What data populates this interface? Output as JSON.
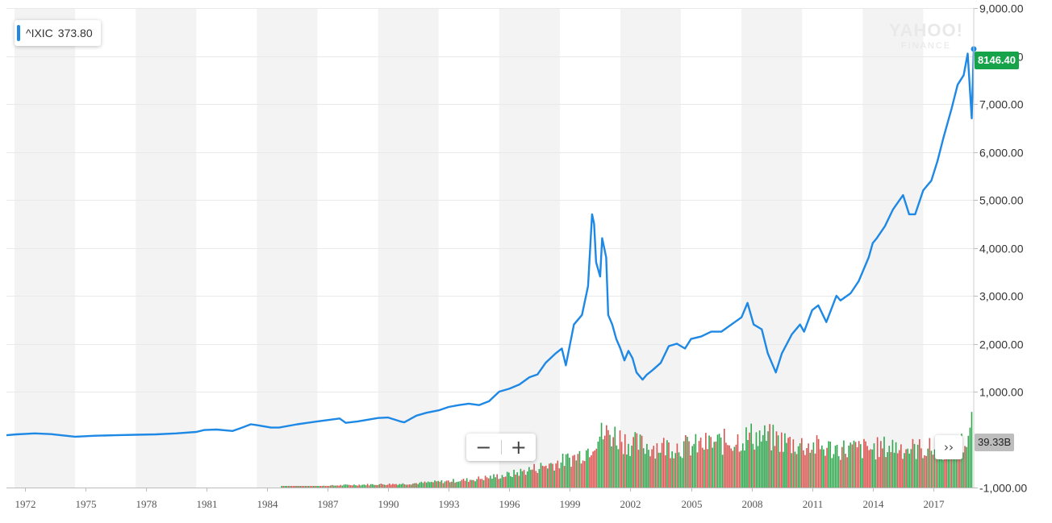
{
  "legend": {
    "symbol": "^IXIC",
    "value": "373.80"
  },
  "watermark": {
    "brand": "YAHOO!",
    "sub": "FINANCE"
  },
  "price_tag": "8146.40",
  "volume_tag": "39.33B",
  "controls": {
    "zoom_out": "−",
    "zoom_in": "+",
    "more": "››"
  },
  "colors": {
    "line": "#1e88e5",
    "volume_up": "#2fa84f",
    "volume_down": "#d9534f",
    "price_tag": "#16a34a"
  },
  "chart_data": {
    "type": "line",
    "ylim": [
      -1000,
      9000
    ],
    "yticks": [
      1000,
      2000,
      3000,
      4000,
      5000,
      6000,
      7000,
      8000,
      9000,
      -1000
    ],
    "ytick_labels": [
      "1,000.00",
      "2,000.00",
      "3,000.00",
      "4,000.00",
      "5,000.00",
      "6,000.00",
      "7,000.00",
      "8,000.00",
      "9,000.00",
      "-1,000.00"
    ],
    "xlim": [
      1971.1,
      2019.0
    ],
    "xticks": [
      1972,
      1975,
      1978,
      1981,
      1984,
      1987,
      1990,
      1993,
      1996,
      1999,
      2002,
      2005,
      2008,
      2011,
      2014,
      2017
    ],
    "xtick_labels": [
      "1972",
      "1975",
      "1978",
      "1981",
      "1984",
      "1987",
      "1990",
      "1993",
      "1996",
      "1999",
      "2002",
      "2005",
      "2008",
      "2011",
      "2014",
      "2017"
    ],
    "series": [
      {
        "x": [
          1971.1,
          1971.6,
          1972.5,
          1973.3,
          1973.8,
          1974.5,
          1974.8,
          1975.5,
          1976.5,
          1977.5,
          1978.5,
          1979.5,
          1980.5,
          1980.9,
          1981.5,
          1982.3,
          1982.7,
          1983.2,
          1983.5,
          1984.2,
          1984.6,
          1985.5,
          1986.5,
          1987.6,
          1987.9,
          1988.5,
          1989.5,
          1990.0,
          1990.6,
          1990.8,
          1991.4,
          1991.9,
          1992.5,
          1993.0,
          1993.5,
          1994.0,
          1994.5,
          1995.0,
          1995.5,
          1996.0,
          1996.5,
          1997.0,
          1997.4,
          1997.8,
          1998.3,
          1998.6,
          1998.8,
          1999.2,
          1999.6,
          1999.9,
          2000.1,
          2000.2,
          2000.3,
          2000.5,
          2000.6,
          2000.8,
          2000.9,
          2001.1,
          2001.3,
          2001.5,
          2001.7,
          2001.9,
          2002.1,
          2002.3,
          2002.6,
          2002.8,
          2003.1,
          2003.5,
          2003.9,
          2004.3,
          2004.7,
          2005.0,
          2005.5,
          2006.0,
          2006.5,
          2007.0,
          2007.5,
          2007.8,
          2008.1,
          2008.5,
          2008.8,
          2009.0,
          2009.2,
          2009.5,
          2010.0,
          2010.4,
          2010.6,
          2011.0,
          2011.3,
          2011.7,
          2012.2,
          2012.4,
          2012.9,
          2013.3,
          2013.8,
          2014.0,
          2014.2,
          2014.6,
          2015.0,
          2015.5,
          2015.8,
          2016.1,
          2016.5,
          2016.9,
          2017.2,
          2017.5,
          2017.9,
          2018.2,
          2018.5,
          2018.7,
          2018.9,
          2019.0
        ],
        "y": [
          90,
          110,
          130,
          115,
          90,
          60,
          65,
          80,
          90,
          100,
          110,
          130,
          160,
          200,
          210,
          180,
          240,
          320,
          300,
          250,
          250,
          320,
          380,
          440,
          350,
          380,
          450,
          460,
          380,
          360,
          500,
          560,
          610,
          680,
          720,
          750,
          720,
          800,
          1000,
          1060,
          1150,
          1300,
          1360,
          1600,
          1800,
          1900,
          1550,
          2400,
          2600,
          3200,
          4700,
          4500,
          3700,
          3400,
          4200,
          3800,
          2600,
          2400,
          2100,
          1900,
          1650,
          1850,
          1700,
          1400,
          1250,
          1350,
          1450,
          1600,
          1950,
          2000,
          1900,
          2100,
          2150,
          2250,
          2250,
          2400,
          2550,
          2850,
          2400,
          2300,
          1800,
          1600,
          1400,
          1800,
          2200,
          2400,
          2250,
          2700,
          2800,
          2450,
          3000,
          2900,
          3050,
          3300,
          3800,
          4100,
          4200,
          4450,
          4800,
          5100,
          4700,
          4700,
          5200,
          5400,
          5800,
          6300,
          6900,
          7400,
          7600,
          8050,
          6700,
          8146
        ]
      }
    ],
    "volume": {
      "x": [
        1984.7,
        1988.0,
        1991.0,
        1994.0,
        1996.0,
        1997.5,
        1998.5,
        1999.3,
        1999.9,
        2000.3,
        2001.0,
        2002.0,
        2003.0,
        2004.0,
        2005.0,
        2006.0,
        2007.0,
        2008.0,
        2009.0,
        2010.0,
        2011.0,
        2012.0,
        2013.0,
        2014.0,
        2015.0,
        2016.0,
        2017.0,
        2017.9,
        2018.6,
        2018.9
      ],
      "y": [
        0,
        100,
        150,
        300,
        500,
        800,
        1000,
        1200,
        1500,
        2000,
        2100,
        1700,
        1600,
        1600,
        1600,
        1700,
        1800,
        2000,
        1900,
        1700,
        1600,
        1500,
        1500,
        1500,
        1600,
        1500,
        1500,
        1500,
        1800,
        2500
      ]
    }
  }
}
